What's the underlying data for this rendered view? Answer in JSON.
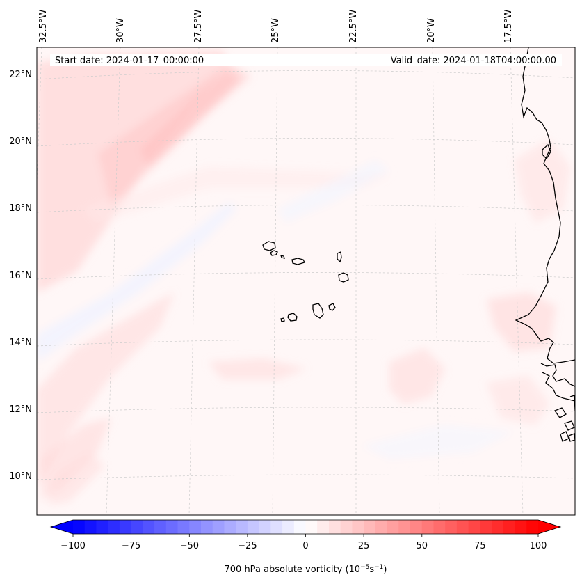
{
  "header": {
    "start_date": "Start date: 2024-01-17_00:00:00",
    "valid_date": "Valid_date: 2024-01-18T04:00:00.00"
  },
  "map": {
    "lon_labels": [
      "32.5°W",
      "30°W",
      "27.5°W",
      "25°W",
      "22.5°W",
      "20°W",
      "17.5°W"
    ],
    "lat_labels": [
      "22°N",
      "20°N",
      "18°N",
      "16°N",
      "14°N",
      "12°N",
      "10°N"
    ],
    "gridlines": true,
    "field_colors": {
      "positive": "#ff0000",
      "negative": "#0000ff",
      "zero": "#ffffff",
      "coast": "#000000",
      "grid": "#c8c8c8"
    }
  },
  "colorbar": {
    "ticks": [
      "−100",
      "−75",
      "−50",
      "−25",
      "0",
      "25",
      "50",
      "75",
      "100"
    ],
    "label_main": "700 hPa absolute vorticity (10",
    "label_exp1": "−5",
    "label_mid": "s",
    "label_exp2": "−1",
    "label_end": ")",
    "vmin": -100,
    "vmax": 100,
    "extend": "both"
  }
}
